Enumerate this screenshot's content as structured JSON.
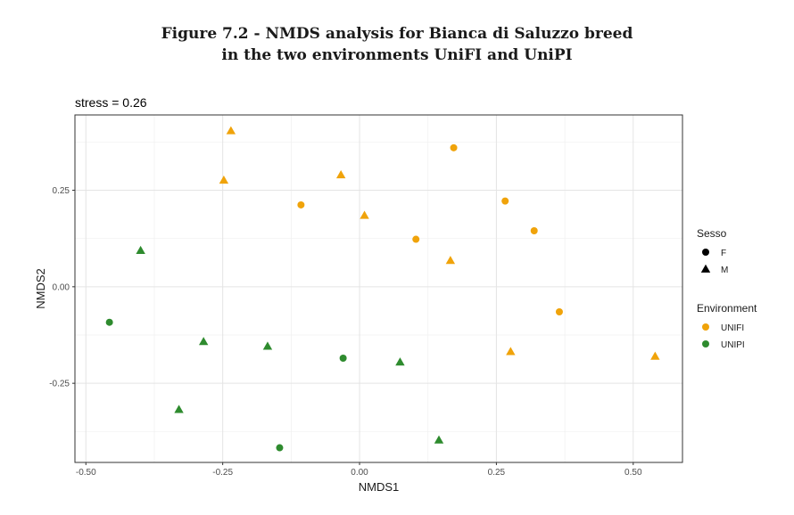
{
  "figure_title": {
    "line1": "Figure 7.2 - NMDS analysis for Bianca di Saluzzo breed",
    "line2": "in the two environments UniFI and UniPI"
  },
  "chart_data": {
    "type": "scatter",
    "subtitle": "stress = 0.26",
    "xlabel": "NMDS1",
    "ylabel": "NMDS2",
    "xlim": [
      -0.52,
      0.59
    ],
    "ylim": [
      -0.455,
      0.445
    ],
    "xticks": [
      -0.5,
      -0.25,
      0.0,
      0.25,
      0.5
    ],
    "xtick_labels": [
      "-0.50",
      "-0.25",
      "0.00",
      "0.25",
      "0.50"
    ],
    "yticks": [
      -0.25,
      0.0,
      0.25
    ],
    "ytick_labels": [
      "-0.25",
      "0.00",
      "0.25"
    ],
    "grid": true,
    "colors": {
      "UNIFI": "#f0a30a",
      "UNIPI": "#2e8b2e"
    },
    "legend": {
      "position": "right",
      "shape_title": "Sesso",
      "shape_items": [
        {
          "label": "F",
          "shape": "circle"
        },
        {
          "label": "M",
          "shape": "triangle"
        }
      ],
      "color_title": "Environment",
      "color_items": [
        {
          "label": "UNIFI",
          "color": "#f0a30a"
        },
        {
          "label": "UNIPI",
          "color": "#2e8b2e"
        }
      ]
    },
    "points": [
      {
        "x": -0.235,
        "y": 0.404,
        "sex": "M",
        "env": "UNIFI"
      },
      {
        "x": 0.172,
        "y": 0.36,
        "sex": "F",
        "env": "UNIFI"
      },
      {
        "x": -0.034,
        "y": 0.29,
        "sex": "M",
        "env": "UNIFI"
      },
      {
        "x": -0.248,
        "y": 0.276,
        "sex": "M",
        "env": "UNIFI"
      },
      {
        "x": 0.266,
        "y": 0.222,
        "sex": "F",
        "env": "UNIFI"
      },
      {
        "x": -0.107,
        "y": 0.212,
        "sex": "F",
        "env": "UNIFI"
      },
      {
        "x": 0.009,
        "y": 0.185,
        "sex": "M",
        "env": "UNIFI"
      },
      {
        "x": 0.319,
        "y": 0.145,
        "sex": "F",
        "env": "UNIFI"
      },
      {
        "x": 0.103,
        "y": 0.123,
        "sex": "F",
        "env": "UNIFI"
      },
      {
        "x": 0.166,
        "y": 0.068,
        "sex": "M",
        "env": "UNIFI"
      },
      {
        "x": 0.365,
        "y": -0.065,
        "sex": "F",
        "env": "UNIFI"
      },
      {
        "x": 0.276,
        "y": -0.168,
        "sex": "M",
        "env": "UNIFI"
      },
      {
        "x": 0.54,
        "y": -0.18,
        "sex": "M",
        "env": "UNIFI"
      },
      {
        "x": -0.4,
        "y": 0.094,
        "sex": "M",
        "env": "UNIPI"
      },
      {
        "x": -0.457,
        "y": -0.092,
        "sex": "F",
        "env": "UNIPI"
      },
      {
        "x": -0.285,
        "y": -0.142,
        "sex": "M",
        "env": "UNIPI"
      },
      {
        "x": -0.168,
        "y": -0.154,
        "sex": "M",
        "env": "UNIPI"
      },
      {
        "x": -0.03,
        "y": -0.185,
        "sex": "F",
        "env": "UNIPI"
      },
      {
        "x": 0.074,
        "y": -0.195,
        "sex": "M",
        "env": "UNIPI"
      },
      {
        "x": -0.33,
        "y": -0.318,
        "sex": "M",
        "env": "UNIPI"
      },
      {
        "x": 0.145,
        "y": -0.397,
        "sex": "M",
        "env": "UNIPI"
      },
      {
        "x": -0.146,
        "y": -0.417,
        "sex": "F",
        "env": "UNIPI"
      }
    ]
  }
}
